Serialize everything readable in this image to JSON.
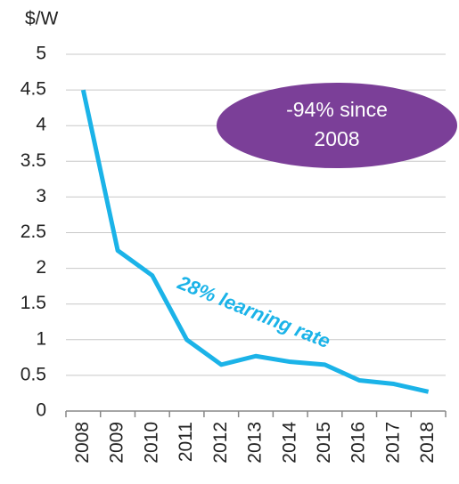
{
  "chart_data": {
    "type": "line",
    "ylabel": "$/W",
    "categories": [
      "2008",
      "2009",
      "2010",
      "2011",
      "2012",
      "2013",
      "2014",
      "2015",
      "2016",
      "2017",
      "2018"
    ],
    "series": [
      {
        "name": null,
        "color": "#1bb3e8",
        "values": [
          4.5,
          2.25,
          1.9,
          1.0,
          0.65,
          0.77,
          0.69,
          0.65,
          0.43,
          0.38,
          0.27
        ]
      }
    ],
    "ylim": [
      0,
      5
    ],
    "yticks": [
      0,
      0.5,
      1,
      1.5,
      2,
      2.5,
      3,
      3.5,
      4,
      4.5,
      5
    ],
    "grid": true,
    "annotations": [
      {
        "lines": [
          "-94% since",
          "2008"
        ],
        "color": "#7b3f98"
      },
      {
        "text": "28% learning rate",
        "color": "#1bb3e8"
      }
    ]
  }
}
